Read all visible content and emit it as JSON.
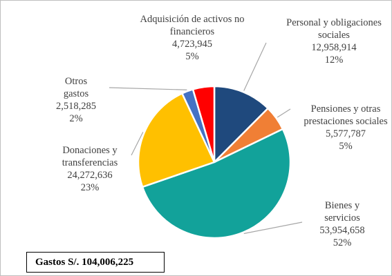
{
  "chart_data": {
    "type": "pie",
    "categories": [
      "Personal y obligaciones sociales",
      "Pensiones y otras prestaciones sociales",
      "Bienes y servicios",
      "Donaciones y transferencias",
      "Otros gastos",
      "Adquisición de activos no financieros"
    ],
    "values": [
      12958914,
      5577787,
      53954658,
      24272636,
      2518285,
      4723945
    ],
    "value_labels": [
      "12,958,914",
      "5,577,787",
      "53,954,658",
      "24,272,636",
      "2,518,285",
      "4,723,945"
    ],
    "percent_labels": [
      "12%",
      "5%",
      "52%",
      "23%",
      "2%",
      "5%"
    ],
    "colors": [
      "#1f497d",
      "#f07f35",
      "#12a29a",
      "#ffc000",
      "#4472c4",
      "#ff0000"
    ],
    "annotation": "Gastos S/. 104,006,225"
  }
}
